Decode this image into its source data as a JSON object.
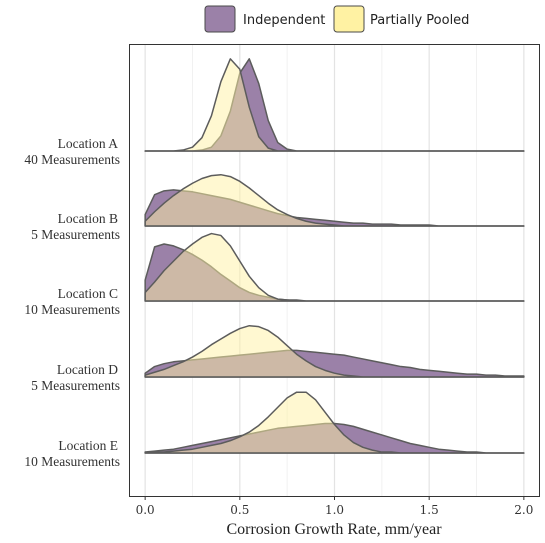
{
  "chart_data": {
    "type": "area",
    "subtype": "ridgeline",
    "title": "",
    "xlabel": "Corrosion Growth Rate, mm/year",
    "ylabel": "",
    "xlim": [
      -0.08,
      2.08
    ],
    "xticks": [
      0.0,
      0.5,
      1.0,
      1.5,
      2.0
    ],
    "xtick_labels": [
      "0.0",
      "0.5",
      "1.0",
      "1.5",
      "2.0"
    ],
    "grid": true,
    "legend_position": "top",
    "colors": {
      "Independent": "#9b81a8",
      "Partially Pooled": "#fff2a3",
      "overlap": "#c9b57e",
      "outline": "#5c5c5c"
    },
    "series_names": [
      "Independent",
      "Partially Pooled"
    ],
    "x": [
      0.0,
      0.05,
      0.1,
      0.15,
      0.2,
      0.25,
      0.3,
      0.35,
      0.4,
      0.45,
      0.5,
      0.55,
      0.6,
      0.65,
      0.7,
      0.75,
      0.8,
      0.85,
      0.9,
      0.95,
      1.0,
      1.05,
      1.1,
      1.15,
      1.2,
      1.25,
      1.3,
      1.35,
      1.4,
      1.45,
      1.5,
      1.55,
      1.6,
      1.65,
      1.7,
      1.75,
      1.8,
      1.85,
      1.9,
      1.95,
      2.0
    ],
    "ridges": [
      {
        "label_line1": "Location A",
        "label_line2": "40 Measurements",
        "Independent": [
          0,
          0,
          0,
          0,
          0,
          0,
          0.01,
          0.04,
          0.16,
          0.42,
          0.82,
          0.97,
          0.71,
          0.32,
          0.09,
          0.02,
          0,
          0,
          0,
          0,
          0,
          0,
          0,
          0,
          0,
          0,
          0,
          0,
          0,
          0,
          0,
          0,
          0,
          0,
          0,
          0,
          0,
          0,
          0,
          0,
          0
        ],
        "Partially Pooled": [
          0,
          0,
          0,
          0,
          0.01,
          0.04,
          0.14,
          0.37,
          0.73,
          0.97,
          0.86,
          0.46,
          0.15,
          0.03,
          0,
          0,
          0,
          0,
          0,
          0,
          0,
          0,
          0,
          0,
          0,
          0,
          0,
          0,
          0,
          0,
          0,
          0,
          0,
          0,
          0,
          0,
          0,
          0,
          0,
          0,
          0
        ]
      },
      {
        "label_line1": "Location B",
        "label_line2": "5 Measurements",
        "Independent": [
          0.12,
          0.33,
          0.37,
          0.38,
          0.37,
          0.36,
          0.34,
          0.32,
          0.3,
          0.28,
          0.25,
          0.22,
          0.19,
          0.16,
          0.13,
          0.11,
          0.09,
          0.08,
          0.07,
          0.06,
          0.05,
          0.04,
          0.03,
          0.03,
          0.02,
          0.02,
          0.02,
          0.01,
          0.01,
          0.01,
          0.01,
          0,
          0,
          0,
          0,
          0,
          0,
          0,
          0,
          0,
          0
        ],
        "Partially Pooled": [
          0.05,
          0.15,
          0.24,
          0.32,
          0.39,
          0.45,
          0.5,
          0.53,
          0.54,
          0.52,
          0.47,
          0.4,
          0.32,
          0.24,
          0.17,
          0.12,
          0.08,
          0.05,
          0.03,
          0.02,
          0.01,
          0,
          0,
          0,
          0,
          0,
          0,
          0,
          0,
          0,
          0,
          0,
          0,
          0,
          0,
          0,
          0,
          0,
          0,
          0,
          0
        ]
      },
      {
        "label_line1": "Location C",
        "label_line2": "10 Measurements",
        "Independent": [
          0.22,
          0.57,
          0.6,
          0.58,
          0.54,
          0.49,
          0.43,
          0.36,
          0.28,
          0.21,
          0.14,
          0.09,
          0.06,
          0.04,
          0.02,
          0.01,
          0.01,
          0,
          0,
          0,
          0,
          0,
          0,
          0,
          0,
          0,
          0,
          0,
          0,
          0,
          0,
          0,
          0,
          0,
          0,
          0,
          0,
          0,
          0,
          0,
          0
        ],
        "Partially Pooled": [
          0.09,
          0.2,
          0.32,
          0.42,
          0.52,
          0.6,
          0.67,
          0.71,
          0.69,
          0.58,
          0.42,
          0.26,
          0.14,
          0.06,
          0.02,
          0.01,
          0,
          0,
          0,
          0,
          0,
          0,
          0,
          0,
          0,
          0,
          0,
          0,
          0,
          0,
          0,
          0,
          0,
          0,
          0,
          0,
          0,
          0,
          0,
          0,
          0
        ]
      },
      {
        "label_line1": "Location D",
        "label_line2": "5 Measurements",
        "Independent": [
          0.04,
          0.11,
          0.14,
          0.16,
          0.17,
          0.18,
          0.19,
          0.2,
          0.21,
          0.22,
          0.23,
          0.24,
          0.25,
          0.26,
          0.27,
          0.28,
          0.28,
          0.27,
          0.26,
          0.25,
          0.24,
          0.23,
          0.21,
          0.19,
          0.17,
          0.15,
          0.13,
          0.11,
          0.1,
          0.08,
          0.07,
          0.06,
          0.05,
          0.04,
          0.03,
          0.03,
          0.02,
          0.02,
          0.01,
          0.01,
          0.01
        ],
        "Partially Pooled": [
          0.02,
          0.05,
          0.08,
          0.12,
          0.16,
          0.21,
          0.27,
          0.34,
          0.4,
          0.46,
          0.51,
          0.54,
          0.53,
          0.49,
          0.42,
          0.33,
          0.24,
          0.17,
          0.11,
          0.07,
          0.04,
          0.02,
          0.01,
          0,
          0,
          0,
          0,
          0,
          0,
          0,
          0,
          0,
          0,
          0,
          0,
          0,
          0,
          0,
          0,
          0,
          0
        ]
      },
      {
        "label_line1": "Location E",
        "label_line2": "10 Measurements",
        "Independent": [
          0.01,
          0.02,
          0.03,
          0.04,
          0.06,
          0.08,
          0.1,
          0.12,
          0.14,
          0.16,
          0.18,
          0.2,
          0.22,
          0.24,
          0.26,
          0.27,
          0.28,
          0.29,
          0.3,
          0.31,
          0.31,
          0.3,
          0.28,
          0.25,
          0.22,
          0.19,
          0.16,
          0.13,
          0.1,
          0.08,
          0.06,
          0.04,
          0.03,
          0.02,
          0.01,
          0.01,
          0,
          0,
          0,
          0,
          0
        ],
        "Partially Pooled": [
          0,
          0.01,
          0.01,
          0.02,
          0.03,
          0.04,
          0.06,
          0.08,
          0.1,
          0.13,
          0.17,
          0.22,
          0.29,
          0.38,
          0.48,
          0.58,
          0.64,
          0.64,
          0.56,
          0.43,
          0.3,
          0.19,
          0.11,
          0.06,
          0.03,
          0.01,
          0.01,
          0,
          0,
          0,
          0,
          0,
          0,
          0,
          0,
          0,
          0,
          0,
          0,
          0,
          0
        ]
      }
    ]
  }
}
